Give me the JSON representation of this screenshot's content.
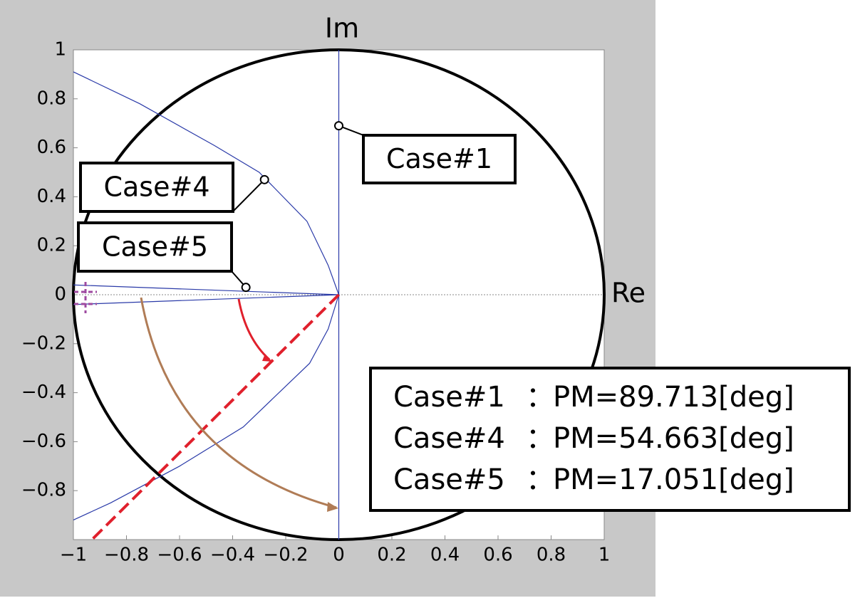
{
  "chart_data": {
    "type": "line",
    "x_axis_label": "Re",
    "y_axis_label": "Im",
    "xlim": [
      -1,
      1
    ],
    "ylim": [
      -1,
      1
    ],
    "xticks": [
      {
        "value": -1,
        "label": "−1"
      },
      {
        "value": -0.8,
        "label": "−0.8"
      },
      {
        "value": -0.6,
        "label": "−0.6"
      },
      {
        "value": -0.4,
        "label": "−0.4"
      },
      {
        "value": -0.2,
        "label": "−0.2"
      },
      0,
      0.2,
      0.4,
      0.6,
      0.8,
      1
    ],
    "yticks": [
      {
        "value": -0.8,
        "label": "−0.8"
      },
      {
        "value": -0.6,
        "label": "−0.6"
      },
      {
        "value": -0.4,
        "label": "−0.4"
      },
      {
        "value": -0.2,
        "label": "−0.2"
      },
      0,
      0.2,
      0.4,
      0.6,
      0.8,
      1
    ],
    "unit_circle": true,
    "series": [
      {
        "color": "#2a3aa8",
        "x": [
          -1,
          -0.75,
          -0.47,
          -0.3,
          -0.12,
          -0.04,
          0
        ],
        "y": [
          0.91,
          0.78,
          0.61,
          0.5,
          0.3,
          0.12,
          0
        ]
      },
      {
        "color": "#2a3aa8",
        "x": [
          0,
          -0.04,
          -0.11,
          -0.36,
          -0.6,
          -0.86,
          -1
        ],
        "y": [
          0,
          -0.14,
          -0.28,
          -0.54,
          -0.7,
          -0.85,
          -0.92
        ]
      },
      {
        "color": "#2a3aa8",
        "x": [
          0,
          0
        ],
        "y": [
          -1,
          1
        ]
      },
      {
        "color": "#2a3aa8",
        "x": [
          -1,
          0
        ],
        "y": [
          0.04,
          0
        ]
      },
      {
        "color": "#2a3aa8",
        "x": [
          -1,
          0
        ],
        "y": [
          -0.04,
          0
        ]
      },
      {
        "color": "#e0202c",
        "dashed": true,
        "x": [
          0,
          -0.93
        ],
        "y": [
          0,
          -1
        ]
      }
    ],
    "points": [
      {
        "name": "Case#1",
        "x": 0,
        "y": 0.69
      },
      {
        "name": "Case#4",
        "x": -0.28,
        "y": 0.47
      },
      {
        "name": "Case#5",
        "x": -0.35,
        "y": 0.03
      }
    ],
    "pm_legend": [
      {
        "case": "Case#1",
        "separator": "：",
        "text": "PM=89.713[deg]",
        "color": "#b07c56"
      },
      {
        "case": "Case#4",
        "separator": "：",
        "text": "PM=54.663[deg]",
        "color": "#e0202c"
      },
      {
        "case": "Case#5",
        "separator": "：",
        "text": "PM=17.051[deg]",
        "color": "#9e4aa0"
      }
    ]
  }
}
